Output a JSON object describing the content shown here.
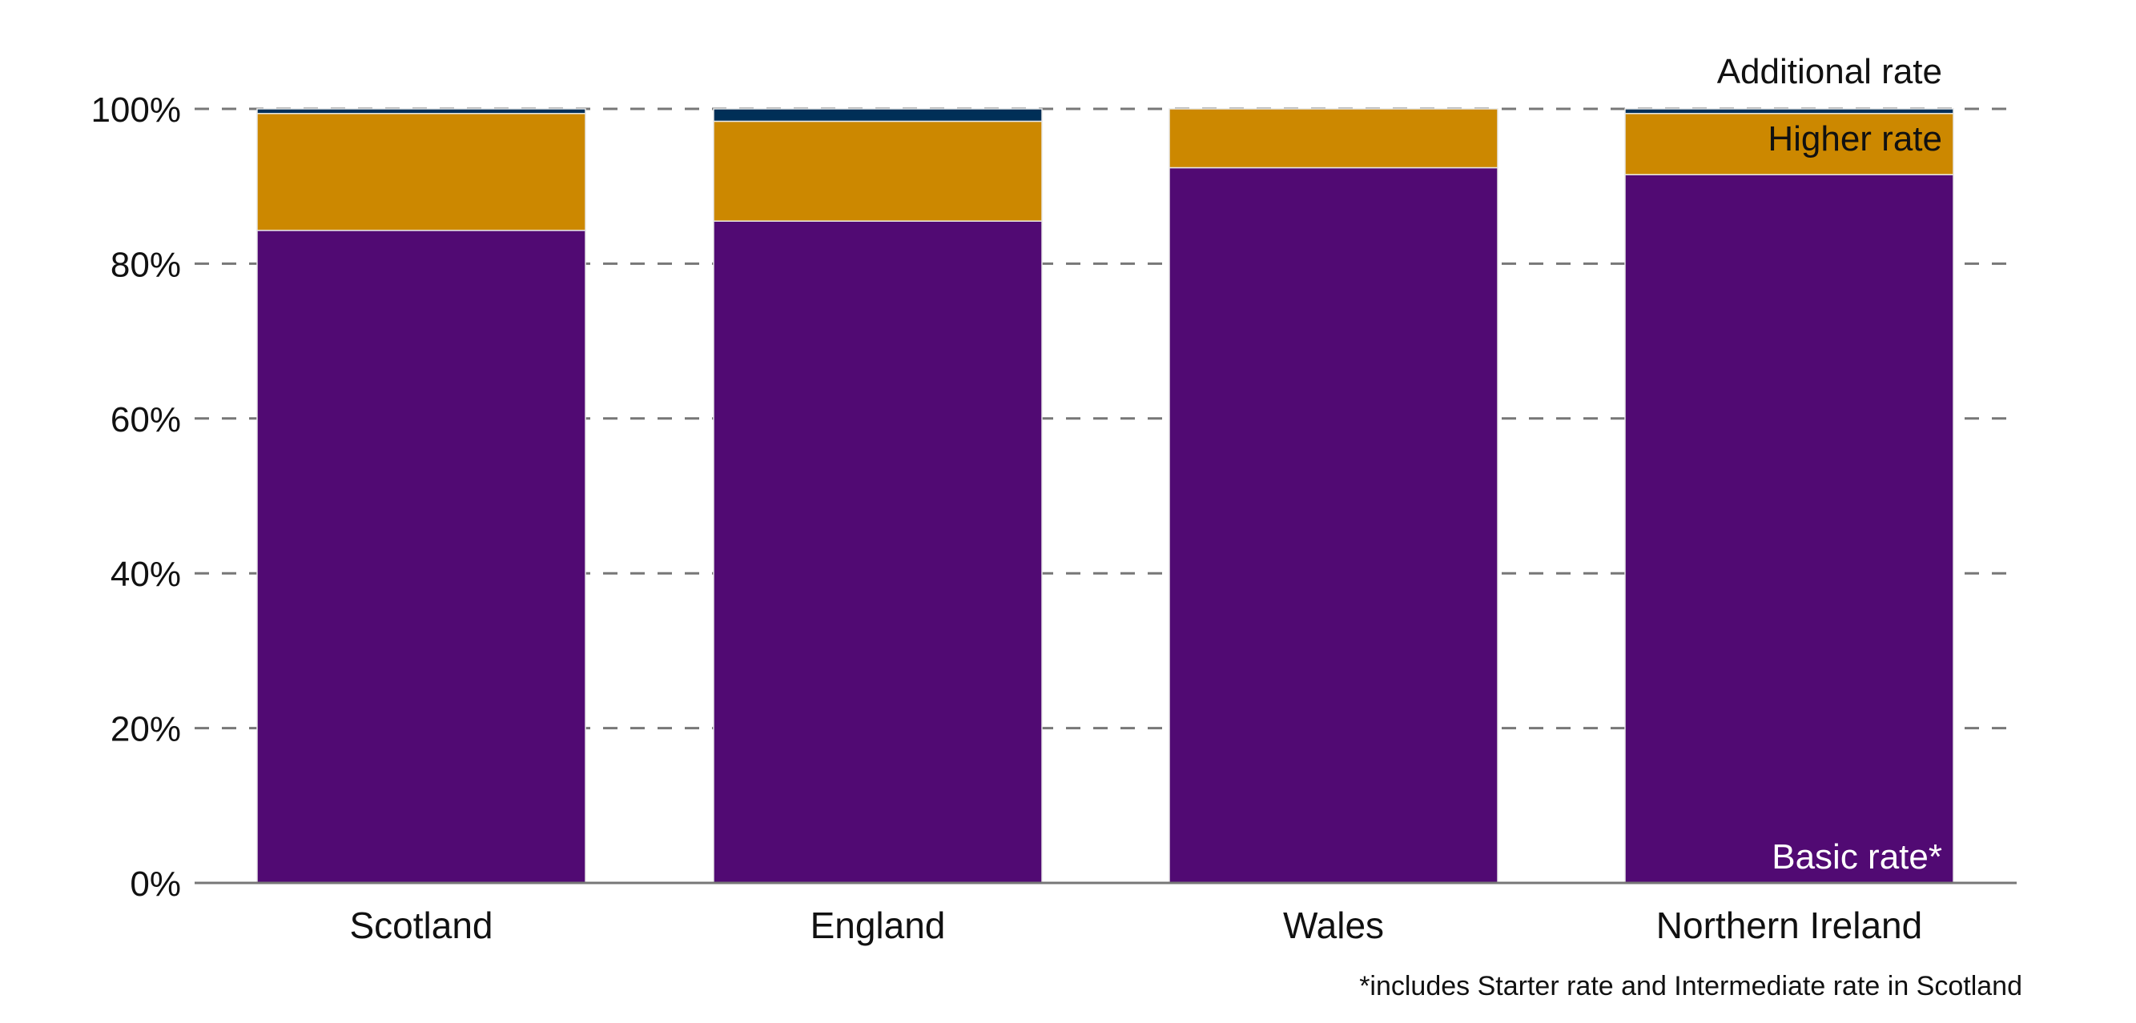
{
  "chart_data": {
    "type": "bar",
    "stacked": true,
    "categories": [
      "Scotland",
      "England",
      "Wales",
      "Northern Ireland"
    ],
    "series": [
      {
        "name": "Basic rate*",
        "color": "#510a73",
        "values": [
          84.3,
          85.5,
          92.4,
          91.5
        ]
      },
      {
        "name": "Higher rate",
        "color": "#cc8800",
        "values": [
          15.1,
          12.9,
          7.6,
          7.9
        ]
      },
      {
        "name": "Additional rate",
        "color": "#002f57",
        "values": [
          0.6,
          1.6,
          0.0,
          0.6
        ]
      }
    ],
    "ylim": [
      0,
      100
    ],
    "yticks": [
      0,
      20,
      40,
      60,
      80,
      100
    ],
    "ytick_labels": [
      "0%",
      "20%",
      "40%",
      "60%",
      "80%",
      "100%"
    ],
    "grid": true,
    "series_labels": {
      "additional": "Additional rate",
      "higher": "Higher rate",
      "basic": "Basic rate*"
    },
    "footnote": "*includes Starter rate and Intermediate rate in Scotland",
    "title": "",
    "xlabel": "",
    "ylabel": ""
  }
}
